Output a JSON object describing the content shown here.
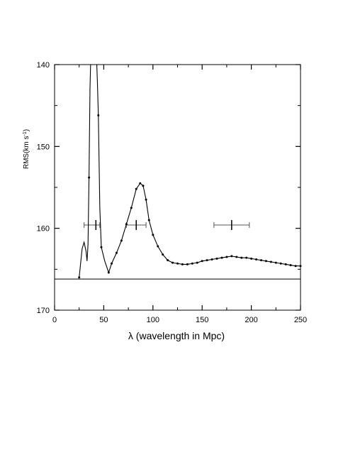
{
  "chart_data": {
    "type": "line",
    "title": "",
    "xlabel": "λ (wavelength in Mpc)",
    "ylabel_main": "RMS(km s",
    "ylabel_exp": "-1",
    "ylabel_close": ")",
    "xlim": [
      0,
      250
    ],
    "ylim": [
      140,
      170
    ],
    "y_inverted": true,
    "grid": false,
    "x_ticks": [
      0,
      50,
      100,
      150,
      200,
      250
    ],
    "x_tick_labels": [
      "0",
      "50",
      "100",
      "150",
      "200",
      "250"
    ],
    "y_ticks": [
      140,
      150,
      160,
      170
    ],
    "y_tick_labels": [
      "140",
      "150",
      "160",
      "170"
    ],
    "reference_line_y": 166.2,
    "curve": [
      [
        25,
        166.0
      ],
      [
        28,
        162.5
      ],
      [
        30,
        161.7
      ],
      [
        32,
        162.8
      ],
      [
        33,
        164.0
      ],
      [
        34,
        162.0
      ],
      [
        35,
        153.8
      ],
      [
        36,
        143.0
      ],
      [
        36.8,
        139.0
      ],
      [
        42.6,
        139.0
      ],
      [
        43.5,
        142.0
      ],
      [
        44.5,
        146.2
      ],
      [
        46,
        157.5
      ],
      [
        47.5,
        162.3
      ],
      [
        51,
        164.0
      ],
      [
        55,
        165.4
      ],
      [
        58,
        164.3
      ],
      [
        63,
        163.0
      ],
      [
        68,
        161.5
      ],
      [
        73,
        159.5
      ],
      [
        78,
        157.5
      ],
      [
        83,
        155.2
      ],
      [
        87,
        154.5
      ],
      [
        90,
        154.8
      ],
      [
        93,
        156.5
      ],
      [
        96,
        159.0
      ],
      [
        100,
        160.8
      ],
      [
        105,
        162.2
      ],
      [
        110,
        163.2
      ],
      [
        115,
        163.9
      ],
      [
        120,
        164.2
      ],
      [
        125,
        164.3
      ],
      [
        130,
        164.4
      ],
      [
        135,
        164.4
      ],
      [
        140,
        164.3
      ],
      [
        145,
        164.2
      ],
      [
        150,
        164.0
      ],
      [
        155,
        163.9
      ],
      [
        160,
        163.8
      ],
      [
        165,
        163.7
      ],
      [
        170,
        163.6
      ],
      [
        175,
        163.5
      ],
      [
        180,
        163.4
      ],
      [
        185,
        163.5
      ],
      [
        190,
        163.6
      ],
      [
        195,
        163.6
      ],
      [
        200,
        163.7
      ],
      [
        205,
        163.8
      ],
      [
        210,
        163.9
      ],
      [
        215,
        164.0
      ],
      [
        220,
        164.1
      ],
      [
        225,
        164.2
      ],
      [
        230,
        164.3
      ],
      [
        235,
        164.4
      ],
      [
        240,
        164.5
      ],
      [
        245,
        164.6
      ],
      [
        250,
        164.6
      ]
    ],
    "markers": [
      [
        25,
        166.0
      ],
      [
        35,
        153.8
      ],
      [
        44.5,
        146.2
      ],
      [
        47.5,
        162.3
      ],
      [
        55,
        165.4
      ],
      [
        58,
        164.3
      ],
      [
        63,
        163.0
      ],
      [
        68,
        161.5
      ],
      [
        73,
        159.5
      ],
      [
        78,
        157.5
      ],
      [
        83,
        155.2
      ],
      [
        87,
        154.5
      ],
      [
        90,
        154.8
      ],
      [
        93,
        156.5
      ],
      [
        96,
        159.0
      ],
      [
        100,
        160.8
      ],
      [
        105,
        162.2
      ],
      [
        110,
        163.2
      ],
      [
        115,
        163.9
      ],
      [
        120,
        164.2
      ],
      [
        125,
        164.3
      ],
      [
        130,
        164.4
      ],
      [
        135,
        164.4
      ],
      [
        140,
        164.3
      ],
      [
        145,
        164.2
      ],
      [
        150,
        164.0
      ],
      [
        155,
        163.9
      ],
      [
        160,
        163.8
      ],
      [
        165,
        163.7
      ],
      [
        170,
        163.6
      ],
      [
        175,
        163.5
      ],
      [
        180,
        163.4
      ],
      [
        185,
        163.5
      ],
      [
        190,
        163.6
      ],
      [
        195,
        163.6
      ],
      [
        200,
        163.7
      ],
      [
        205,
        163.8
      ],
      [
        210,
        163.9
      ],
      [
        215,
        164.0
      ],
      [
        220,
        164.1
      ],
      [
        225,
        164.2
      ],
      [
        230,
        164.3
      ],
      [
        235,
        164.4
      ],
      [
        240,
        164.5
      ],
      [
        245,
        164.6
      ],
      [
        250,
        164.6
      ]
    ],
    "error_bars": [
      {
        "x": 42,
        "y": 159.6,
        "xmin": 30,
        "xmax": 46
      },
      {
        "x": 83,
        "y": 159.6,
        "xmin": 73,
        "xmax": 93
      },
      {
        "x": 180,
        "y": 159.6,
        "xmin": 162,
        "xmax": 198
      }
    ]
  }
}
